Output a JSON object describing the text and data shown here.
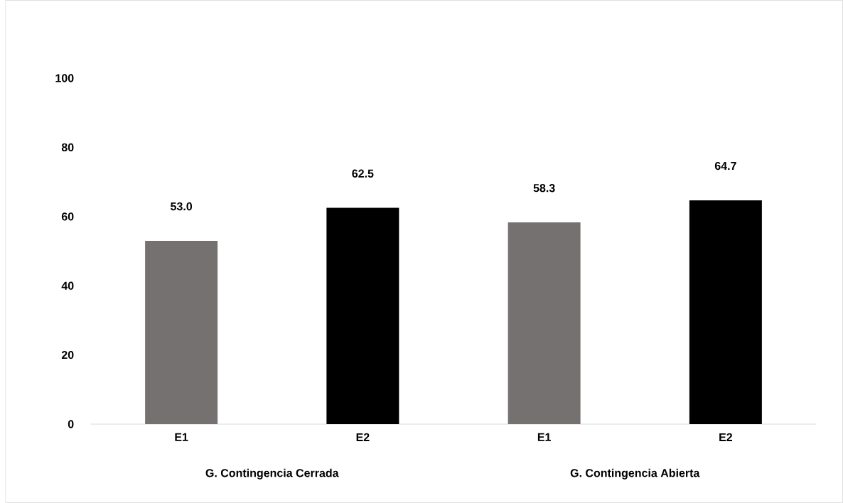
{
  "chart_data": {
    "type": "bar",
    "categories": [
      "E1",
      "E2",
      "E1",
      "E2"
    ],
    "values": [
      53.0,
      62.5,
      58.3,
      64.7
    ],
    "colors": [
      "#767171",
      "#000000",
      "#767171",
      "#000000"
    ],
    "ylim": [
      0,
      100
    ],
    "yticks": [
      0,
      20,
      40,
      60,
      80,
      100
    ],
    "value_labels": [
      "53.0",
      "62.5",
      "58.3",
      "64.7"
    ],
    "annotations": [
      "G. Contingencia Cerrada",
      "G. Contingencia Abierta"
    ]
  }
}
